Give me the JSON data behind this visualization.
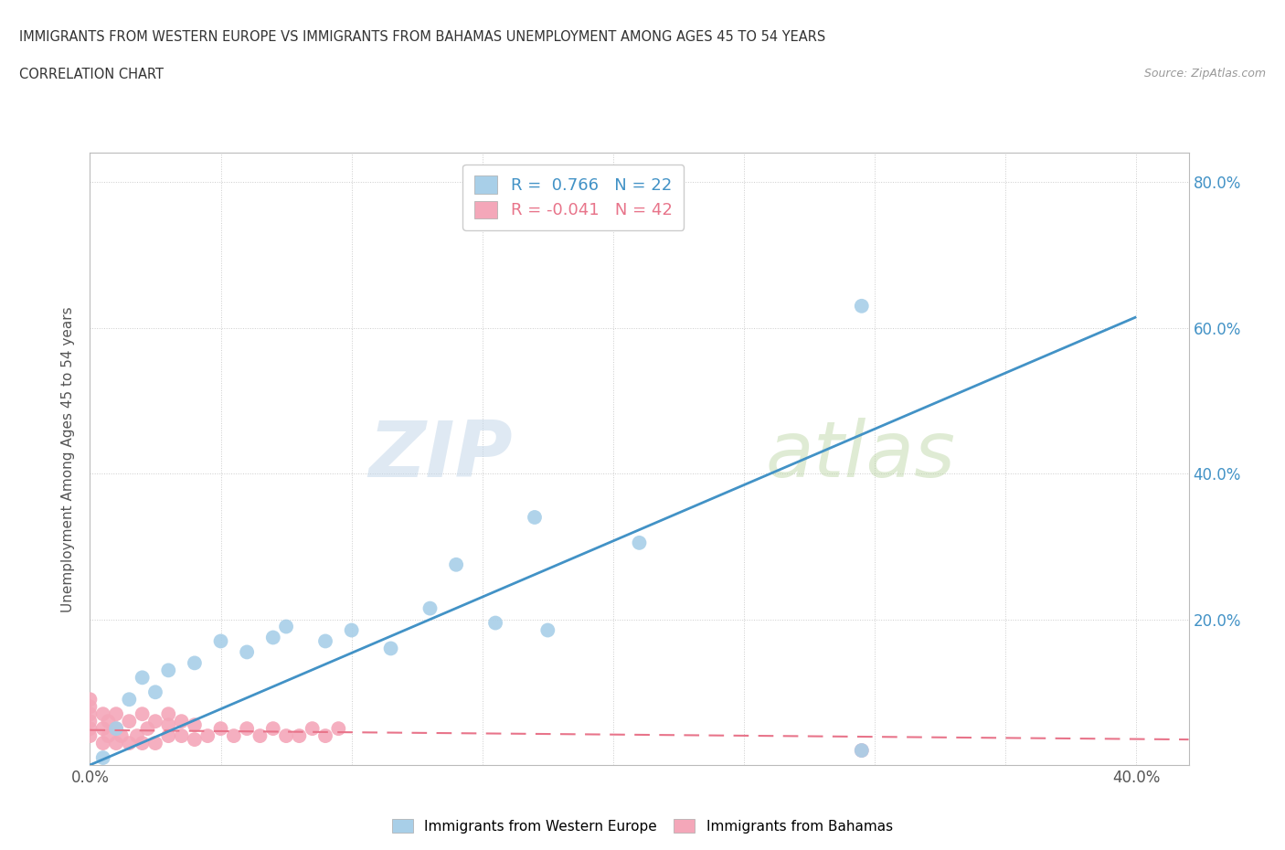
{
  "title_line1": "IMMIGRANTS FROM WESTERN EUROPE VS IMMIGRANTS FROM BAHAMAS UNEMPLOYMENT AMONG AGES 45 TO 54 YEARS",
  "title_line2": "CORRELATION CHART",
  "source_text": "Source: ZipAtlas.com",
  "ylabel": "Unemployment Among Ages 45 to 54 years",
  "xlim": [
    0.0,
    0.42
  ],
  "ylim": [
    0.0,
    0.84
  ],
  "x_ticks": [
    0.0,
    0.05,
    0.1,
    0.15,
    0.2,
    0.25,
    0.3,
    0.35,
    0.4
  ],
  "y_ticks": [
    0.0,
    0.2,
    0.4,
    0.6,
    0.8
  ],
  "watermark_text": "ZIPatlas",
  "blue_color": "#a8cfe8",
  "pink_color": "#f4a7b9",
  "blue_line_color": "#4292c6",
  "pink_line_color": "#e8748a",
  "legend_blue_color": "#a8cfe8",
  "legend_pink_color": "#f4a7b9",
  "R_blue": 0.766,
  "N_blue": 22,
  "R_pink": -0.041,
  "N_pink": 42,
  "blue_scatter_x": [
    0.005,
    0.01,
    0.015,
    0.02,
    0.025,
    0.03,
    0.04,
    0.05,
    0.06,
    0.07,
    0.075,
    0.09,
    0.1,
    0.115,
    0.13,
    0.14,
    0.155,
    0.17,
    0.175,
    0.21,
    0.295,
    0.295
  ],
  "blue_scatter_y": [
    0.01,
    0.05,
    0.09,
    0.12,
    0.1,
    0.13,
    0.14,
    0.17,
    0.155,
    0.175,
    0.19,
    0.17,
    0.185,
    0.16,
    0.215,
    0.275,
    0.195,
    0.34,
    0.185,
    0.305,
    0.02,
    0.63
  ],
  "pink_scatter_x": [
    0.0,
    0.0,
    0.0,
    0.0,
    0.0,
    0.0,
    0.005,
    0.005,
    0.005,
    0.007,
    0.007,
    0.01,
    0.01,
    0.01,
    0.012,
    0.015,
    0.015,
    0.018,
    0.02,
    0.02,
    0.022,
    0.025,
    0.025,
    0.03,
    0.03,
    0.03,
    0.035,
    0.035,
    0.04,
    0.04,
    0.045,
    0.05,
    0.055,
    0.06,
    0.065,
    0.07,
    0.075,
    0.08,
    0.085,
    0.09,
    0.095,
    0.295
  ],
  "pink_scatter_y": [
    0.04,
    0.05,
    0.06,
    0.07,
    0.08,
    0.09,
    0.03,
    0.05,
    0.07,
    0.04,
    0.06,
    0.03,
    0.05,
    0.07,
    0.04,
    0.03,
    0.06,
    0.04,
    0.03,
    0.07,
    0.05,
    0.03,
    0.06,
    0.04,
    0.055,
    0.07,
    0.04,
    0.06,
    0.035,
    0.055,
    0.04,
    0.05,
    0.04,
    0.05,
    0.04,
    0.05,
    0.04,
    0.04,
    0.05,
    0.04,
    0.05,
    0.02
  ],
  "background_color": "#ffffff",
  "grid_color": "#cccccc",
  "blue_regression_x0": 0.0,
  "blue_regression_y0": 0.0,
  "blue_regression_x1": 0.4,
  "blue_regression_y1": 0.615,
  "pink_regression_x0": 0.0,
  "pink_regression_y0": 0.048,
  "pink_regression_x1": 0.42,
  "pink_regression_y1": 0.035
}
